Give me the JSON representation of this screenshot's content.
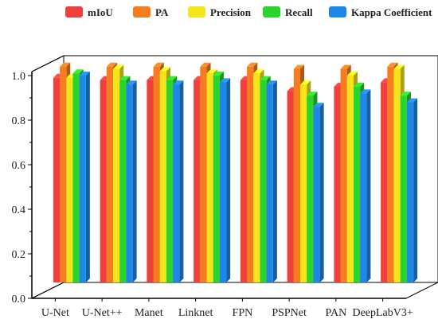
{
  "chart_data": {
    "type": "bar",
    "categories": [
      "U-Net",
      "U-Net++",
      "Manet",
      "Linknet",
      "FPN",
      "PSPNet",
      "PAN",
      "DeepLabV3+"
    ],
    "series": [
      {
        "name": "mIoU",
        "values": [
          0.99,
          0.98,
          0.98,
          0.98,
          0.98,
          0.93,
          0.95,
          0.97
        ]
      },
      {
        "name": "PA",
        "values": [
          1.04,
          1.04,
          1.04,
          1.04,
          1.04,
          1.03,
          1.03,
          1.04
        ]
      },
      {
        "name": "Precision",
        "values": [
          0.99,
          1.03,
          1.02,
          1.01,
          1.01,
          0.96,
          1.0,
          1.03
        ]
      },
      {
        "name": "Recall",
        "values": [
          1.01,
          0.98,
          0.98,
          1.0,
          0.98,
          0.91,
          0.95,
          0.91
        ]
      },
      {
        "name": "Kappa Coefficient",
        "values": [
          1.0,
          0.96,
          0.96,
          0.97,
          0.96,
          0.86,
          0.92,
          0.88
        ]
      }
    ],
    "yticks": [
      "0.0",
      "0.2",
      "0.4",
      "0.6",
      "0.8",
      "1.0"
    ],
    "ylim": [
      0,
      1.1
    ],
    "legend_position": "top",
    "grid": false,
    "colors": [
      "#f0403c",
      "#f57d1f",
      "#f5e41a",
      "#2bd42b",
      "#1f87e8"
    ]
  }
}
